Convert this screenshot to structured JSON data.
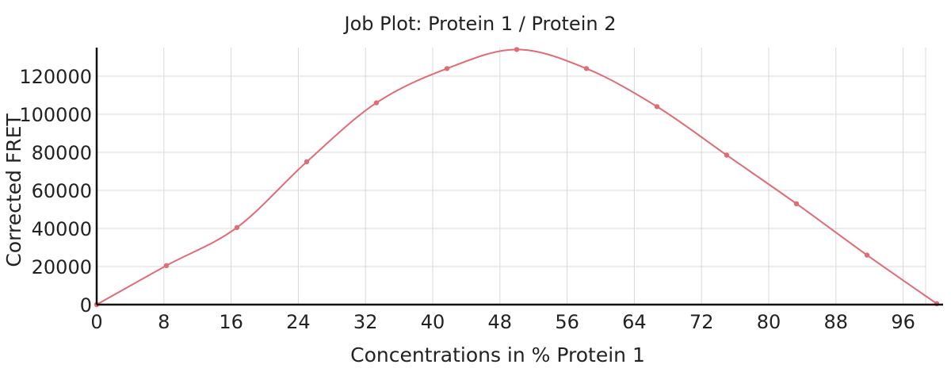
{
  "chart_data": {
    "type": "line",
    "title": "Job Plot: Protein 1 / Protein 2",
    "xlabel": "Concentrations in % Protein 1",
    "ylabel": "Corrected FRET",
    "xlim": [
      0,
      100
    ],
    "ylim": [
      0,
      135000
    ],
    "x_ticks": [
      0,
      8,
      16,
      24,
      32,
      40,
      48,
      56,
      64,
      72,
      80,
      88,
      96
    ],
    "y_ticks": [
      0,
      20000,
      40000,
      60000,
      80000,
      100000,
      120000
    ],
    "x_tick_labels": [
      "0",
      "8",
      "16",
      "24",
      "32",
      "40",
      "48",
      "56",
      "64",
      "72",
      "80",
      "88",
      "96"
    ],
    "y_tick_labels": [
      "0",
      "20000",
      "40000",
      "60000",
      "80000",
      "100000",
      "120000"
    ],
    "grid": true,
    "colors": {
      "series": "#e06c75",
      "axis": "#111111",
      "grid": "#d9d9d9"
    },
    "series": [
      {
        "points": [
          {
            "x": 0,
            "y": 0
          },
          {
            "x": 8.3,
            "y": 20500
          },
          {
            "x": 16.7,
            "y": 40500
          },
          {
            "x": 25,
            "y": 75000
          },
          {
            "x": 33.3,
            "y": 106000
          },
          {
            "x": 41.7,
            "y": 124000
          },
          {
            "x": 50,
            "y": 134000
          },
          {
            "x": 58.3,
            "y": 124000
          },
          {
            "x": 66.7,
            "y": 104000
          },
          {
            "x": 75,
            "y": 78500
          },
          {
            "x": 83.3,
            "y": 53000
          },
          {
            "x": 91.7,
            "y": 26000
          },
          {
            "x": 100,
            "y": 500
          }
        ]
      }
    ]
  }
}
